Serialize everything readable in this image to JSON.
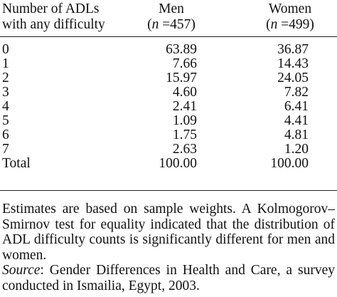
{
  "table": {
    "header": {
      "col1_line1": "Number of ADLs",
      "col1_line2": "with any difficulty",
      "men_label": "Men",
      "men_n_prefix": "(",
      "men_n_var": "n",
      "men_n_value": " =457)",
      "women_label": "Women",
      "women_n_prefix": "(",
      "women_n_var": "n",
      "women_n_value": " =499)"
    },
    "rows": [
      {
        "label": "0",
        "men": "63.89",
        "women": "36.87"
      },
      {
        "label": "1",
        "men": "7.66",
        "women": "14.43"
      },
      {
        "label": "2",
        "men": "15.97",
        "women": "24.05"
      },
      {
        "label": "3",
        "men": "4.60",
        "women": "7.82"
      },
      {
        "label": "4",
        "men": "2.41",
        "women": "6.41"
      },
      {
        "label": "5",
        "men": "1.09",
        "women": "4.41"
      },
      {
        "label": "6",
        "men": "1.75",
        "women": "4.81"
      },
      {
        "label": "7",
        "men": "2.63",
        "women": "1.20"
      },
      {
        "label": "Total",
        "men": "100.00",
        "women": "100.00"
      }
    ]
  },
  "notes": {
    "estimates": "Estimates are based on sample weights. A Kolmogorov–Smirnov test for equality indicated that the distribution of ADL difficulty counts is significantly different for men and women.",
    "source_label": "Source",
    "source_text": ": Gender Differences in Health and Care, a survey conducted in Ismailia, Egypt, 2003."
  }
}
